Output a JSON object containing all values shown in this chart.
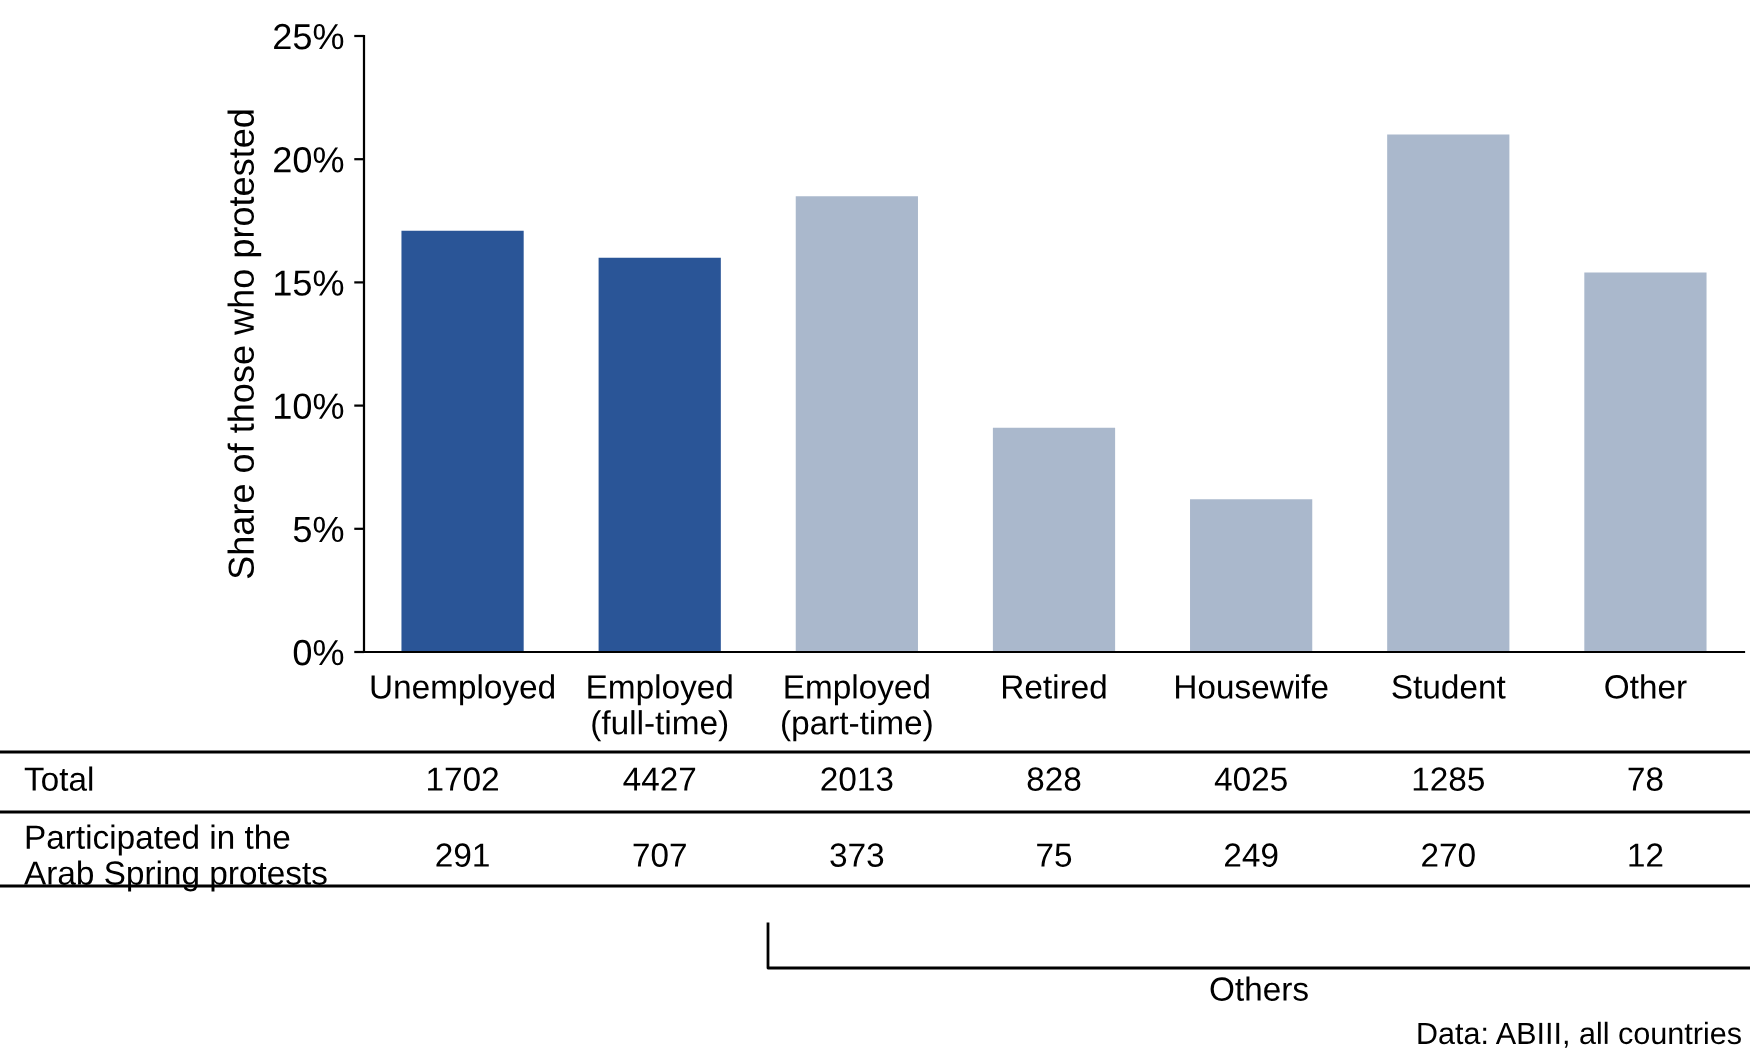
{
  "chart_data": {
    "type": "bar",
    "ylabel": "Share of those who protested",
    "categories": [
      "Unemployed",
      "Employed\n(full-time)",
      "Employed\n(part-time)",
      "Retired",
      "Housewife",
      "Student",
      "Other"
    ],
    "values": [
      17.1,
      16.0,
      18.5,
      9.1,
      6.2,
      21.0,
      15.4
    ],
    "colors": [
      "#2a5597",
      "#2a5597",
      "#aab8cc",
      "#aab8cc",
      "#aab8cc",
      "#aab8cc",
      "#aab8cc"
    ],
    "ylim": [
      0,
      25
    ],
    "yticks": [
      {
        "value": 0,
        "label": "0%"
      },
      {
        "value": 5,
        "label": "5%"
      },
      {
        "value": 10,
        "label": "10%"
      },
      {
        "value": 15,
        "label": "15%"
      },
      {
        "value": 20,
        "label": "20%"
      },
      {
        "value": 25,
        "label": "25%"
      }
    ],
    "grid": false,
    "annotations": [
      "Total",
      "1702",
      "4427",
      "2013",
      "828",
      "4025",
      "1285",
      "78",
      "Participated in the\nArab Spring protests",
      "291",
      "707",
      "373",
      "75",
      "249",
      "270",
      "12",
      "Others",
      "Data: ABIII, all countries"
    ]
  }
}
